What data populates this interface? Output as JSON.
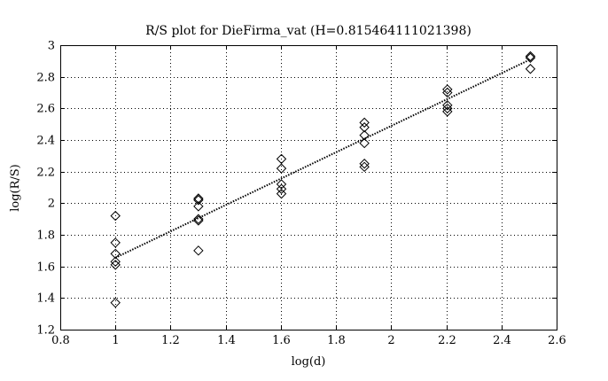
{
  "chart_data": {
    "type": "scatter",
    "title": "R/S plot for DieFirma_vat (H=0.815464111021398)",
    "xlabel": "log(d)",
    "ylabel": "log(R/S)",
    "xlim": [
      0.8,
      2.6
    ],
    "ylim": [
      1.2,
      3.0
    ],
    "xticks": [
      "0.8",
      "1",
      "1.2",
      "1.4",
      "1.6",
      "1.8",
      "2",
      "2.2",
      "2.4",
      "2.6"
    ],
    "yticks": [
      "1.2",
      "1.4",
      "1.6",
      "1.8",
      "2",
      "2.2",
      "2.4",
      "2.6",
      "2.8",
      "3"
    ],
    "grid": true,
    "grid_style": "dotted",
    "marker": "diamond-open",
    "colors": {
      "marker": "#000000",
      "fit_line": "#000000",
      "grid": "#000000"
    },
    "series": [
      {
        "points": [
          [
            1.0,
            1.92
          ],
          [
            1.0,
            1.75
          ],
          [
            1.0,
            1.68
          ],
          [
            1.0,
            1.63
          ],
          [
            1.0,
            1.61
          ],
          [
            1.0,
            1.37
          ],
          [
            1.301,
            2.03
          ],
          [
            1.301,
            2.02
          ],
          [
            1.301,
            1.98
          ],
          [
            1.301,
            1.9
          ],
          [
            1.301,
            1.89
          ],
          [
            1.301,
            1.7
          ],
          [
            1.602,
            2.28
          ],
          [
            1.602,
            2.22
          ],
          [
            1.602,
            2.12
          ],
          [
            1.602,
            2.09
          ],
          [
            1.602,
            2.06
          ],
          [
            1.903,
            2.51
          ],
          [
            1.903,
            2.48
          ],
          [
            1.903,
            2.43
          ],
          [
            1.903,
            2.38
          ],
          [
            1.903,
            2.25
          ],
          [
            1.903,
            2.23
          ],
          [
            2.204,
            2.72
          ],
          [
            2.204,
            2.7
          ],
          [
            2.204,
            2.62
          ],
          [
            2.204,
            2.6
          ],
          [
            2.204,
            2.58
          ],
          [
            2.505,
            2.93
          ],
          [
            2.505,
            2.92
          ],
          [
            2.505,
            2.85
          ]
        ]
      }
    ],
    "fit_line": {
      "style": "dotted",
      "points": [
        [
          1.0,
          1.655
        ],
        [
          2.505,
          2.91
        ]
      ]
    }
  }
}
